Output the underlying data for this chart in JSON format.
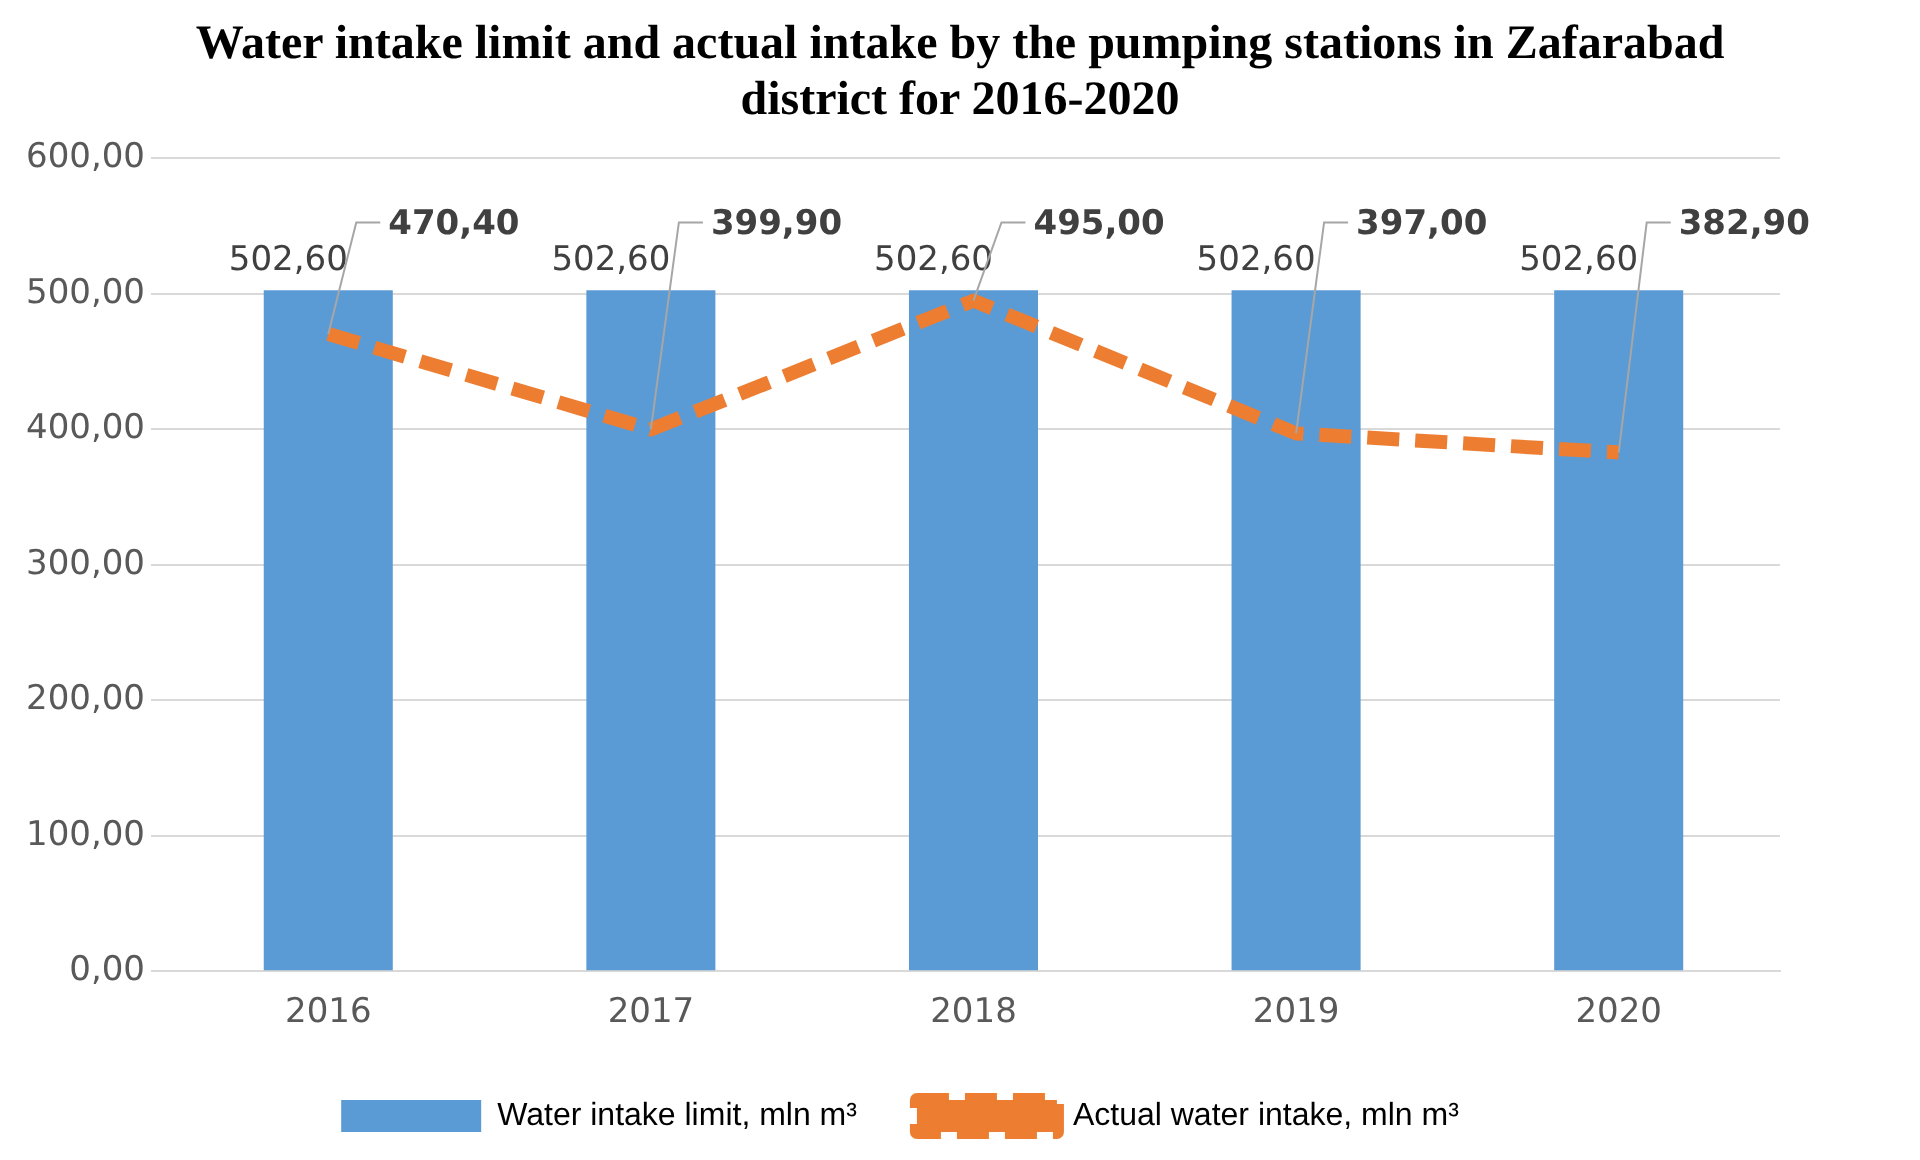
{
  "chart_data": {
    "type": "bar",
    "title": "Water intake limit and actual intake by the pumping stations in Zafarabad district for 2016-2020",
    "categories": [
      "2016",
      "2017",
      "2018",
      "2019",
      "2020"
    ],
    "series": [
      {
        "name": "Water intake limit, mln m³",
        "color": "#5b9bd5",
        "values": [
          502.6,
          502.6,
          502.6,
          502.6,
          502.6
        ],
        "value_labels": [
          "502,60",
          "502,60",
          "502,60",
          "502,60",
          "502,60"
        ]
      },
      {
        "name": "Actual water intake, mln m³",
        "type": "line",
        "color": "#ed7d31",
        "line_style": "dashed",
        "marker": "none",
        "values": [
          470.4,
          399.9,
          495,
          397,
          382.9
        ],
        "value_labels": [
          "470,40",
          "399,90",
          "495,00",
          "397,00",
          "382,90"
        ]
      }
    ],
    "ylim": [
      0,
      600
    ],
    "yticks": [
      {
        "value": 0,
        "label": "0,00"
      },
      {
        "value": 100,
        "label": "100,00"
      },
      {
        "value": 200,
        "label": "200,00"
      },
      {
        "value": 300,
        "label": "300,00"
      },
      {
        "value": 400,
        "label": "400,00"
      },
      {
        "value": 500,
        "label": "500,00"
      },
      {
        "value": 600,
        "label": "600,00"
      }
    ],
    "grid": "y",
    "legend": "bottom"
  }
}
